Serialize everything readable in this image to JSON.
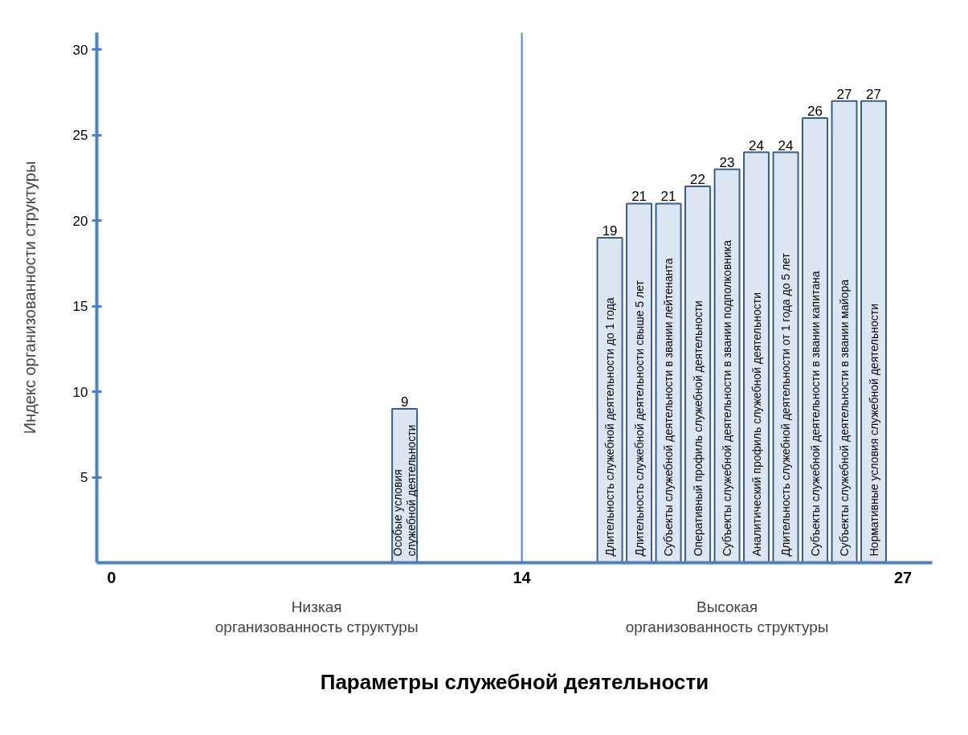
{
  "chart_data": {
    "type": "bar",
    "xlabel": "Параметры служебной деятельности",
    "ylabel": "Индекс организованности структуры",
    "x": [
      10,
      17,
      18,
      19,
      20,
      21,
      22,
      23,
      24,
      25,
      26
    ],
    "values": [
      9,
      19,
      21,
      21,
      22,
      23,
      24,
      24,
      26,
      27,
      27
    ],
    "color": "#dce6f2",
    "data_labels": true,
    "xlim": [
      -0.5,
      28
    ],
    "xticks": [
      0,
      14,
      27
    ],
    "ylim": [
      0,
      31
    ],
    "yticks": [
      5,
      10,
      15,
      20,
      25,
      30
    ],
    "grid": false,
    "ref_lines": [
      {
        "axis": "x",
        "value": 14,
        "color": "#4f81bd"
      }
    ],
    "annotations": [
      {
        "text": "Особые условия служебной деятельности",
        "x": 10,
        "y": 0
      },
      {
        "text": "Длительность служебной деятельности до 1 года",
        "x": 17,
        "y": 0
      },
      {
        "text": "Длительность служебной деятельности свыше 5 лет",
        "x": 18,
        "y": 0
      },
      {
        "text": "Субъекты служебной деятельности в звании лейтенанта",
        "x": 19,
        "y": 0
      },
      {
        "text": "Оперативный профиль служебной деятельности",
        "x": 20,
        "y": 0
      },
      {
        "text": "Субъекты служебной деятельности в звании подполковника",
        "x": 21,
        "y": 0
      },
      {
        "text": "Аналитический профиль служебной деятельности",
        "x": 22,
        "y": 0
      },
      {
        "text": "Длительность служебной деятельности от 1 года до 5 лет",
        "x": 23,
        "y": 0
      },
      {
        "text": "Субъекты служебной деятельности в звании капитана",
        "x": 24,
        "y": 0
      },
      {
        "text": "Субъекты служебной деятельности в звании майора",
        "x": 25,
        "y": 0
      },
      {
        "text": "Нормативные условия служебной деятельности",
        "x": 26,
        "y": 0
      },
      "Низкая организованность структуры",
      "Высокая организованность структуры"
    ]
  }
}
